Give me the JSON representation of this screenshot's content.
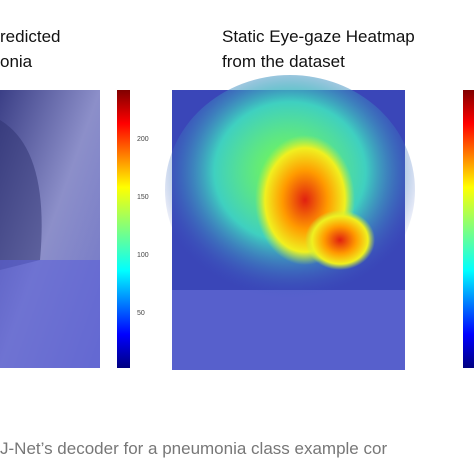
{
  "figure": {
    "left_panel": {
      "title_lines": [
        "redicted",
        "onia"
      ],
      "colorbar_ticks": [
        200,
        150,
        100,
        50
      ]
    },
    "right_panel": {
      "title_lines": [
        "Static Eye-gaze Heatmap",
        "from the dataset"
      ]
    },
    "caption": "J-Net’s decoder for a pneumonia class example cor"
  }
}
